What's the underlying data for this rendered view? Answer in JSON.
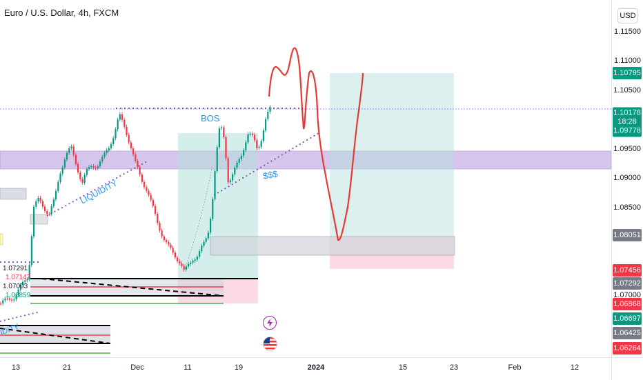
{
  "symbol_title": "Euro / U.S. Dollar, 4h, FXCM",
  "currency": "USD",
  "price_levels": [
    "1.11500",
    "1.11000",
    "1.10500",
    "1.09500",
    "1.09000",
    "1.08500",
    "1.07000"
  ],
  "price_badges": [
    {
      "value": "1.10795",
      "color": "#089981"
    },
    {
      "value": "1.10178",
      "color": "#089981"
    },
    {
      "value": "18:28",
      "color": "#089981"
    },
    {
      "value": "1.09778",
      "color": "#089981"
    },
    {
      "value": "1.08051",
      "color": "#787b86"
    },
    {
      "value": "1.07456",
      "color": "#f23645"
    },
    {
      "value": "1.07292",
      "color": "#787b86"
    },
    {
      "value": "1.06868",
      "color": "#f23645"
    },
    {
      "value": "1.06697",
      "color": "#089981"
    },
    {
      "value": "1.06425",
      "color": "#787b86"
    },
    {
      "value": "1.06264",
      "color": "#f23645"
    }
  ],
  "time_labels": [
    "13",
    "21",
    "Dec",
    "11",
    "19",
    "2024",
    "15",
    "23",
    "Feb",
    "12"
  ],
  "annotations": {
    "bos": "BOS",
    "liquidity": "LIQUIDITY",
    "dollars": "$$$",
    "idity": "IDITY"
  },
  "left_labels": [
    "1.07291",
    "1.07147",
    "1.07003",
    "1.06859"
  ],
  "colors": {
    "up": "#089981",
    "down": "#f23645",
    "liquidity_zone": "#b39ddb",
    "target_zone": "#b2dfdb",
    "stop_zone": "#f8bbd0",
    "projection": "#e53935",
    "annotation": "#2196f3"
  },
  "icons": [
    "lightning-icon",
    "us-flag-icon"
  ]
}
